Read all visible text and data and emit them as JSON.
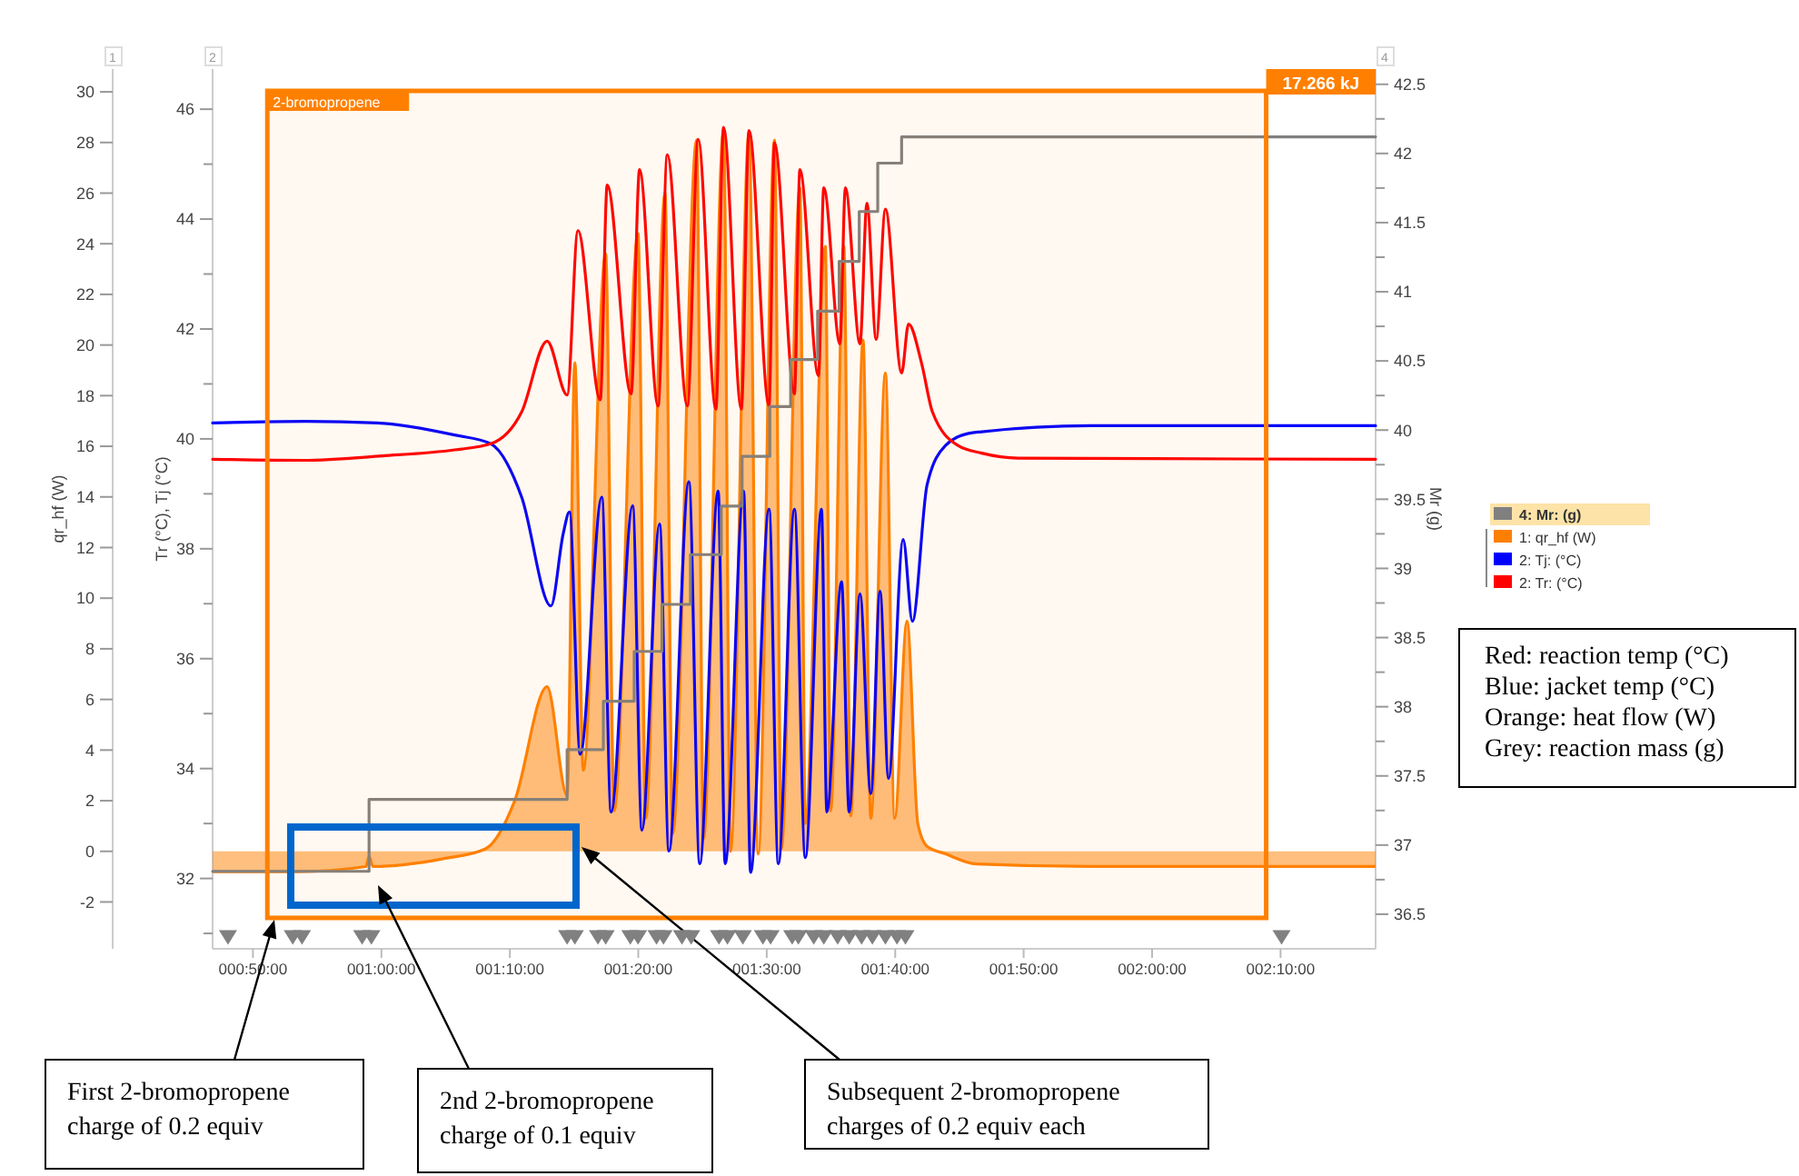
{
  "chart_data": {
    "type": "line",
    "ylabel": "qr_hf (W)",
    "y2label": "Tr (°C), Tj (°C)",
    "y3label": "Mr (g)",
    "xlim": [
      0.781,
      2.29
    ],
    "xticks": [
      {
        "value": 0.8333,
        "label": "000:50:00"
      },
      {
        "value": 1,
        "label": "001:00:00"
      },
      {
        "value": 1.1667,
        "label": "001:10:00"
      },
      {
        "value": 1.3333,
        "label": "001:20:00"
      },
      {
        "value": 1.5,
        "label": "001:30:00"
      },
      {
        "value": 1.6667,
        "label": "001:40:00"
      },
      {
        "value": 1.8333,
        "label": "001:50:00"
      },
      {
        "value": 2,
        "label": "002:00:00"
      },
      {
        "value": 2.1667,
        "label": "002:10:00"
      }
    ],
    "ylim": [
      -3.85,
      30.9
    ],
    "yticks": [
      -2,
      0,
      2,
      4,
      6,
      8,
      10,
      12,
      14,
      16,
      18,
      20,
      22,
      24,
      26,
      28,
      30
    ],
    "y2lim": [
      30.72,
      46.73
    ],
    "y2ticks": [
      {
        "value": 31,
        "label": null
      },
      32,
      {
        "value": 33,
        "label": null
      },
      34,
      {
        "value": 35,
        "label": null
      },
      36,
      {
        "value": 37,
        "label": null
      },
      38,
      {
        "value": 39,
        "label": null
      },
      40,
      {
        "value": 41,
        "label": null
      },
      42,
      {
        "value": 43,
        "label": null
      },
      44,
      {
        "value": 45,
        "label": null
      },
      46
    ],
    "y3lim": [
      36.25,
      42.61
    ],
    "y3ticks": [
      36.5,
      {
        "value": 36.75,
        "label": null
      },
      37,
      {
        "value": 37.25,
        "label": null
      },
      37.5,
      {
        "value": 37.75,
        "label": null
      },
      38,
      {
        "value": 38.25,
        "label": null
      },
      38.5,
      {
        "value": 38.75,
        "label": null
      },
      39,
      {
        "value": 39.25,
        "label": null
      },
      39.5,
      {
        "value": 39.75,
        "label": null
      },
      40,
      {
        "value": 40.25,
        "label": null
      },
      40.5,
      {
        "value": 40.75,
        "label": null
      },
      41,
      {
        "value": 41.25,
        "label": null
      },
      41.5,
      {
        "value": 41.75,
        "label": null
      },
      42,
      {
        "value": 42.25,
        "label": null
      },
      42.5
    ],
    "legend": "right",
    "series": [
      {
        "name": "4: Mr: (g)",
        "type": "step",
        "axis": "y3",
        "color": "#808080",
        "x": [
          0.781,
          0.984,
          1.241,
          1.288,
          1.328,
          1.364,
          1.401,
          1.441,
          1.468,
          1.504,
          1.531,
          1.566,
          1.594,
          1.62,
          1.644,
          1.675,
          2.29
        ],
        "values": [
          36.81,
          37.33,
          37.69,
          38.04,
          38.4,
          38.74,
          39.1,
          39.45,
          39.81,
          40.17,
          40.51,
          40.86,
          41.22,
          41.58,
          41.93,
          42.12,
          42.12
        ]
      },
      {
        "name": "1: qr_hf (W)",
        "type": "area",
        "axis": "y",
        "color": "#ff8000",
        "x": [
          0.781,
          0.89,
          0.98,
          0.984,
          0.989,
          1.079,
          1.135,
          1.173,
          1.215,
          1.241,
          1.251,
          1.262,
          1.291,
          1.302,
          1.333,
          1.343,
          1.368,
          1.378,
          1.409,
          1.418,
          1.444,
          1.453,
          1.477,
          1.489,
          1.51,
          1.519,
          1.543,
          1.55,
          1.576,
          1.583,
          1.6,
          1.609,
          1.625,
          1.635,
          1.654,
          1.666,
          1.682,
          1.696,
          1.708,
          1.732,
          1.772,
          1.92,
          2.29
        ],
        "values": [
          -0.8,
          -0.8,
          -0.6,
          -0.2,
          -0.6,
          -0.3,
          0.1,
          2.0,
          6.5,
          2.2,
          19.3,
          3.2,
          23.6,
          1.6,
          24.4,
          1.3,
          26.0,
          0.7,
          28.1,
          0.5,
          28.5,
          0.0,
          28.4,
          -0.1,
          28.1,
          0.1,
          26.2,
          1.1,
          23.9,
          1.6,
          23.9,
          1.4,
          20.2,
          1.3,
          18.9,
          1.3,
          9.1,
          1.1,
          0.2,
          -0.1,
          -0.5,
          -0.6,
          -0.6
        ]
      },
      {
        "name": "2: Tj: (°C)",
        "axis": "y2",
        "color": "#0000ff",
        "x": [
          0.781,
          0.902,
          0.994,
          1.095,
          1.142,
          1.182,
          1.22,
          1.236,
          1.244,
          1.258,
          1.286,
          1.298,
          1.326,
          1.338,
          1.361,
          1.373,
          1.399,
          1.413,
          1.437,
          1.446,
          1.47,
          1.479,
          1.503,
          1.515,
          1.536,
          1.55,
          1.571,
          1.578,
          1.597,
          1.607,
          1.621,
          1.635,
          1.647,
          1.658,
          1.677,
          1.689,
          1.708,
          1.732,
          1.762,
          1.779,
          1.92,
          2.29
        ],
        "values": [
          40.29,
          40.32,
          40.29,
          40.07,
          39.91,
          38.94,
          36.96,
          38.28,
          38.67,
          34.26,
          38.94,
          33.21,
          38.78,
          32.88,
          38.45,
          32.5,
          39.22,
          32.27,
          39.05,
          32.27,
          39.05,
          32.11,
          38.72,
          32.27,
          38.72,
          32.38,
          38.72,
          33.21,
          37.4,
          33.21,
          37.18,
          33.54,
          37.23,
          33.82,
          38.17,
          36.68,
          39.16,
          39.88,
          40.1,
          40.13,
          40.24,
          40.24
        ]
      },
      {
        "name": "2: Tr: (°C)",
        "axis": "y2",
        "color": "#ff0000",
        "x": [
          0.781,
          0.899,
          1.001,
          1.095,
          1.142,
          1.182,
          1.215,
          1.241,
          1.255,
          1.284,
          1.293,
          1.324,
          1.335,
          1.359,
          1.371,
          1.397,
          1.411,
          1.434,
          1.444,
          1.467,
          1.477,
          1.503,
          1.51,
          1.536,
          1.543,
          1.567,
          1.574,
          1.595,
          1.602,
          1.621,
          1.63,
          1.642,
          1.654,
          1.675,
          1.684,
          1.701,
          1.715,
          1.748,
          1.779,
          1.826,
          2.29
        ],
        "values": [
          39.63,
          39.61,
          39.69,
          39.8,
          39.91,
          40.49,
          41.78,
          40.8,
          43.79,
          40.71,
          44.62,
          40.82,
          44.9,
          40.6,
          45.17,
          40.6,
          45.45,
          40.54,
          45.67,
          40.54,
          45.61,
          40.6,
          45.39,
          40.82,
          44.9,
          41.15,
          44.57,
          41.73,
          44.57,
          41.73,
          44.29,
          41.81,
          44.18,
          41.2,
          42.09,
          41.37,
          40.49,
          39.88,
          39.74,
          39.65,
          39.63
        ]
      },
      {
        "type": "scatter",
        "axis": "y",
        "marker": "triangle",
        "color": "#808080",
        "x": [
          0.801,
          0.885,
          0.897,
          0.975,
          0.987,
          1.241,
          1.251,
          1.281,
          1.291,
          1.323,
          1.333,
          1.357,
          1.366,
          1.39,
          1.402,
          1.438,
          1.449,
          1.469,
          1.495,
          1.505,
          1.533,
          1.541,
          1.561,
          1.574,
          1.592,
          1.607,
          1.623,
          1.637,
          1.654,
          1.669,
          1.68,
          2.168
        ],
        "values": [
          -3.4,
          -3.4,
          -3.4,
          -3.4,
          -3.4,
          -3.4,
          -3.4,
          -3.4,
          -3.4,
          -3.4,
          -3.4,
          -3.4,
          -3.4,
          -3.4,
          -3.4,
          -3.4,
          -3.4,
          -3.4,
          -3.4,
          -3.4,
          -3.4,
          -3.4,
          -3.4,
          -3.4,
          -3.4,
          -3.4,
          -3.4,
          -3.4,
          -3.4,
          -3.4,
          -3.4,
          -3.4
        ]
      }
    ],
    "bands": [
      {
        "axis": "x",
        "from": 0.852,
        "to": 2.148,
        "label": "2-bromopropene",
        "color": "#ff8000"
      }
    ],
    "annotations": [
      "17.266 kJ",
      "First 2-bromopropene\ncharge of 0.2 equiv",
      "2nd 2-bromopropene\ncharge of 0.1 equiv",
      "Subsequent 2-bromopropene\ncharges of 0.2 equiv each",
      "Red: reaction temp (°C)\nBlue: jacket temp (°C)\nOrange: heat flow (W)\nGrey: reaction mass (g)",
      "1",
      "2",
      "4"
    ]
  }
}
